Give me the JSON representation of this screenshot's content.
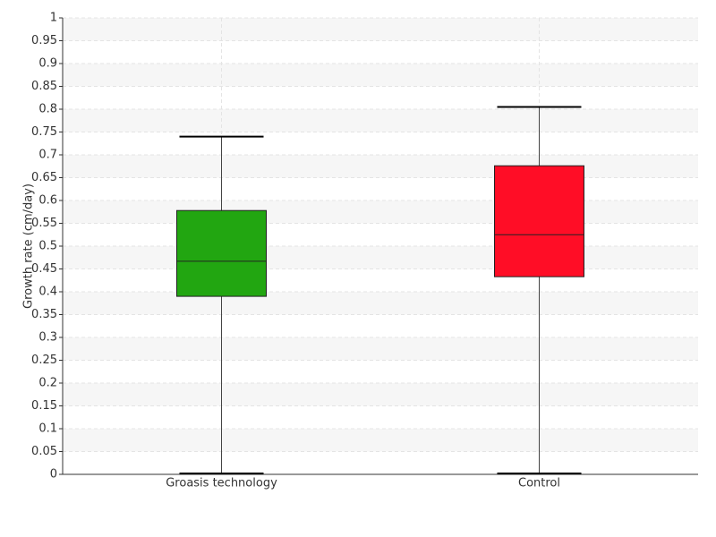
{
  "chart_data": {
    "type": "box",
    "y_label": "Growth rate (cm/day)",
    "categories": [
      "Groasis technology",
      "Control"
    ],
    "colors": [
      "#22a611",
      "#ff0d26"
    ],
    "boxes": [
      {
        "min": 0,
        "q1": 0.39,
        "median": 0.467,
        "q3": 0.578,
        "max": 0.74
      },
      {
        "min": 0,
        "q1": 0.433,
        "median": 0.525,
        "q3": 0.676,
        "max": 0.805
      }
    ],
    "ylim": [
      0,
      1
    ],
    "yticks": [
      0,
      0.05,
      0.1,
      0.15,
      0.2,
      0.25,
      0.3,
      0.35,
      0.4,
      0.45,
      0.5,
      0.55,
      0.6,
      0.65,
      0.7,
      0.75,
      0.8,
      0.85,
      0.9,
      0.95,
      1
    ],
    "grid": true
  }
}
